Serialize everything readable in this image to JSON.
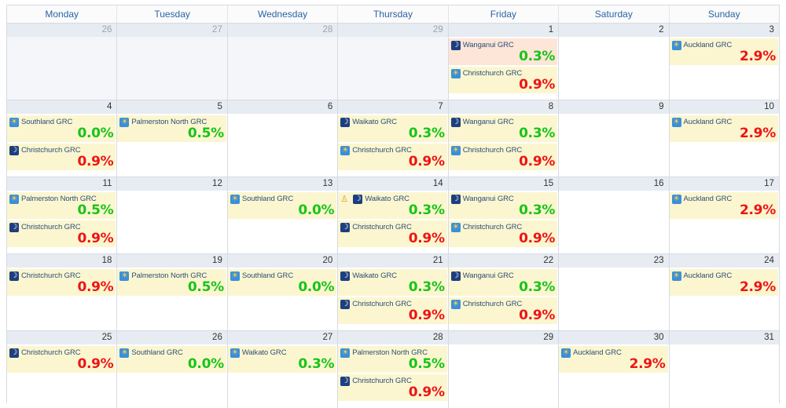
{
  "days_of_week": [
    "Monday",
    "Tuesday",
    "Wednesday",
    "Thursday",
    "Friday",
    "Saturday",
    "Sunday"
  ],
  "colors": {
    "green": "#17c417",
    "red": "#ee1414",
    "event_bg": "#fbf6cf",
    "event_bg_highlight": "#fde5d7"
  },
  "weeks": [
    {
      "days": [
        {
          "num": "26",
          "other": true,
          "events": []
        },
        {
          "num": "27",
          "other": true,
          "events": []
        },
        {
          "num": "28",
          "other": true,
          "events": []
        },
        {
          "num": "29",
          "other": true,
          "events": []
        },
        {
          "num": "1",
          "events": [
            {
              "icon": "moon-icon",
              "track": "Wanganui GRC",
              "pct": "0.3%",
              "color": "green",
              "bg": "pink"
            },
            {
              "icon": "sun-icon",
              "track": "Christchurch GRC",
              "pct": "0.9%",
              "color": "red"
            }
          ]
        },
        {
          "num": "2",
          "events": []
        },
        {
          "num": "3",
          "events": [
            {
              "icon": "sun-icon",
              "track": "Auckland GRC",
              "pct": "2.9%",
              "color": "red"
            }
          ]
        }
      ]
    },
    {
      "days": [
        {
          "num": "4",
          "events": [
            {
              "icon": "sun-icon",
              "track": "Southland GRC",
              "pct": "0.0%",
              "color": "green"
            },
            {
              "icon": "moon-icon",
              "track": "Christchurch GRC",
              "pct": "0.9%",
              "color": "red"
            }
          ]
        },
        {
          "num": "5",
          "events": [
            {
              "icon": "sun-icon",
              "track": "Palmerston North GRC",
              "pct": "0.5%",
              "color": "green"
            }
          ]
        },
        {
          "num": "6",
          "events": []
        },
        {
          "num": "7",
          "events": [
            {
              "icon": "moon-icon",
              "track": "Waikato GRC",
              "pct": "0.3%",
              "color": "green"
            },
            {
              "icon": "sun-icon",
              "track": "Christchurch GRC",
              "pct": "0.9%",
              "color": "red"
            }
          ]
        },
        {
          "num": "8",
          "events": [
            {
              "icon": "moon-icon",
              "track": "Wanganui GRC",
              "pct": "0.3%",
              "color": "green"
            },
            {
              "icon": "sun-icon",
              "track": "Christchurch GRC",
              "pct": "0.9%",
              "color": "red"
            }
          ]
        },
        {
          "num": "9",
          "events": []
        },
        {
          "num": "10",
          "events": [
            {
              "icon": "sun-icon",
              "track": "Auckland GRC",
              "pct": "2.9%",
              "color": "red"
            }
          ]
        }
      ]
    },
    {
      "days": [
        {
          "num": "11",
          "events": [
            {
              "icon": "sun-icon",
              "track": "Palmerston North GRC",
              "pct": "0.5%",
              "color": "green"
            },
            {
              "icon": "moon-icon",
              "track": "Christchurch GRC",
              "pct": "0.9%",
              "color": "red"
            }
          ]
        },
        {
          "num": "12",
          "events": []
        },
        {
          "num": "13",
          "events": [
            {
              "icon": "sun-icon",
              "track": "Southland GRC",
              "pct": "0.0%",
              "color": "green"
            }
          ]
        },
        {
          "num": "14",
          "events": [
            {
              "icon": "moon-icon",
              "trophy": true,
              "track": "Waikato GRC",
              "pct": "0.3%",
              "color": "green"
            },
            {
              "icon": "moon-icon",
              "track": "Christchurch GRC",
              "pct": "0.9%",
              "color": "red"
            }
          ]
        },
        {
          "num": "15",
          "events": [
            {
              "icon": "moon-icon",
              "track": "Wanganui GRC",
              "pct": "0.3%",
              "color": "green"
            },
            {
              "icon": "sun-icon",
              "track": "Christchurch GRC",
              "pct": "0.9%",
              "color": "red"
            }
          ]
        },
        {
          "num": "16",
          "events": []
        },
        {
          "num": "17",
          "events": [
            {
              "icon": "sun-icon",
              "track": "Auckland GRC",
              "pct": "2.9%",
              "color": "red"
            }
          ]
        }
      ]
    },
    {
      "days": [
        {
          "num": "18",
          "events": [
            {
              "icon": "moon-icon",
              "track": "Christchurch GRC",
              "pct": "0.9%",
              "color": "red"
            }
          ]
        },
        {
          "num": "19",
          "events": [
            {
              "icon": "sun-icon",
              "track": "Palmerston North GRC",
              "pct": "0.5%",
              "color": "green"
            }
          ]
        },
        {
          "num": "20",
          "events": [
            {
              "icon": "sun-icon",
              "track": "Southland GRC",
              "pct": "0.0%",
              "color": "green"
            }
          ]
        },
        {
          "num": "21",
          "events": [
            {
              "icon": "moon-icon",
              "track": "Waikato GRC",
              "pct": "0.3%",
              "color": "green"
            },
            {
              "icon": "moon-icon",
              "track": "Christchurch GRC",
              "pct": "0.9%",
              "color": "red"
            }
          ]
        },
        {
          "num": "22",
          "events": [
            {
              "icon": "moon-icon",
              "track": "Wanganui GRC",
              "pct": "0.3%",
              "color": "green"
            },
            {
              "icon": "sun-icon",
              "track": "Christchurch GRC",
              "pct": "0.9%",
              "color": "red"
            }
          ]
        },
        {
          "num": "23",
          "events": []
        },
        {
          "num": "24",
          "events": [
            {
              "icon": "sun-icon",
              "track": "Auckland GRC",
              "pct": "2.9%",
              "color": "red"
            }
          ]
        }
      ]
    },
    {
      "days": [
        {
          "num": "25",
          "events": [
            {
              "icon": "moon-icon",
              "track": "Christchurch GRC",
              "pct": "0.9%",
              "color": "red"
            }
          ]
        },
        {
          "num": "26",
          "events": [
            {
              "icon": "sun-icon",
              "track": "Southland GRC",
              "pct": "0.0%",
              "color": "green"
            }
          ]
        },
        {
          "num": "27",
          "events": [
            {
              "icon": "sun-icon",
              "track": "Waikato GRC",
              "pct": "0.3%",
              "color": "green"
            }
          ]
        },
        {
          "num": "28",
          "events": [
            {
              "icon": "sun-icon",
              "track": "Palmerston North GRC",
              "pct": "0.5%",
              "color": "green"
            },
            {
              "icon": "moon-icon",
              "track": "Christchurch GRC",
              "pct": "0.9%",
              "color": "red"
            }
          ]
        },
        {
          "num": "29",
          "events": []
        },
        {
          "num": "30",
          "events": [
            {
              "icon": "sun-icon",
              "track": "Auckland GRC",
              "pct": "2.9%",
              "color": "red"
            }
          ]
        },
        {
          "num": "31",
          "events": []
        }
      ]
    }
  ]
}
